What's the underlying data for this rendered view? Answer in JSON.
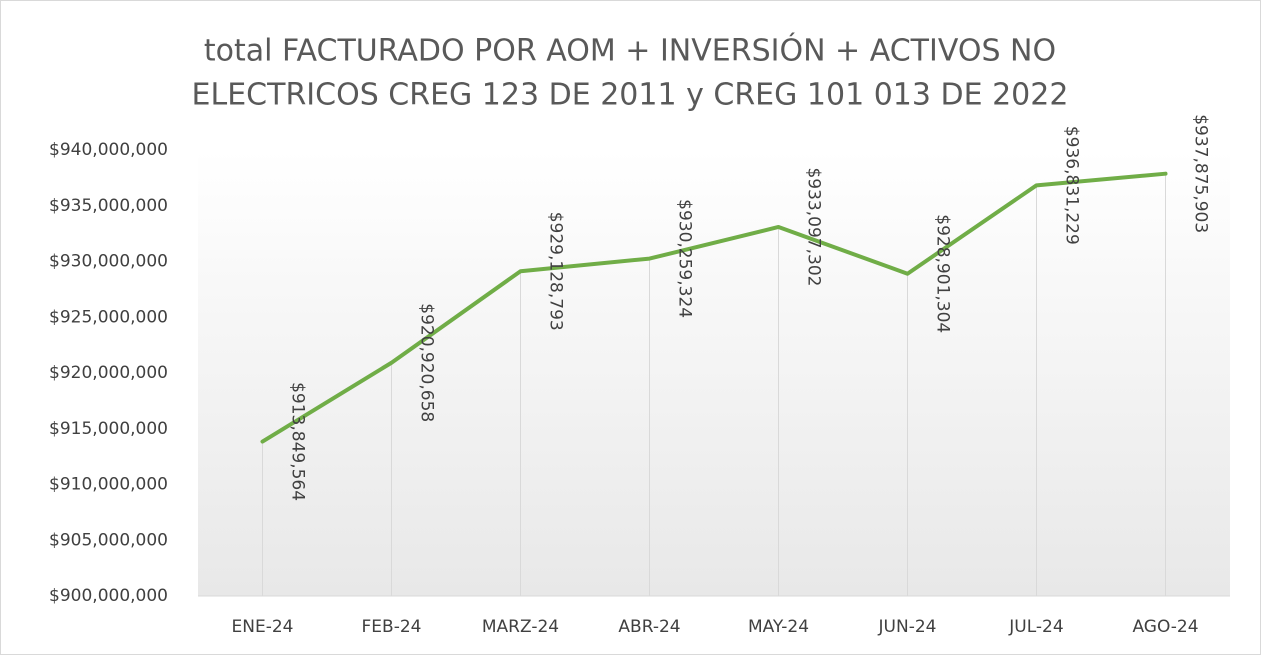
{
  "chart_data": {
    "type": "line",
    "title": [
      "total FACTURADO POR AOM + INVERSIÓN + ACTIVOS NO",
      "ELECTRICOS CREG 123 DE 2011 y CREG 101 013 DE 2022"
    ],
    "categories": [
      "ENE-24",
      "FEB-24",
      "MARZ-24",
      "ABR-24",
      "MAY-24",
      "JUN-24",
      "JUL-24",
      "AGO-24"
    ],
    "series": [
      {
        "color": "#70ad47",
        "values": [
          913849564,
          920920658,
          929128793,
          930259324,
          933097302,
          928901304,
          936831229,
          937875903
        ],
        "value_labels": [
          "$913,849,564",
          "$920,920,658",
          "$929,128,793",
          "$930,259,324",
          "$933,097,302",
          "$928,901,304",
          "$936,831,229",
          "$937,875,903"
        ]
      }
    ],
    "ylim": [
      900000000,
      940000000
    ],
    "yticks": [
      {
        "value": 900000000,
        "label": "$900,000,000"
      },
      {
        "value": 905000000,
        "label": "$905,000,000"
      },
      {
        "value": 910000000,
        "label": "$910,000,000"
      },
      {
        "value": 915000000,
        "label": "$915,000,000"
      },
      {
        "value": 920000000,
        "label": "$920,000,000"
      },
      {
        "value": 925000000,
        "label": "$925,000,000"
      },
      {
        "value": 930000000,
        "label": "$930,000,000"
      },
      {
        "value": 935000000,
        "label": "$935,000,000"
      },
      {
        "value": 940000000,
        "label": "$940,000,000"
      }
    ],
    "grid": false,
    "drop_lines": true
  }
}
